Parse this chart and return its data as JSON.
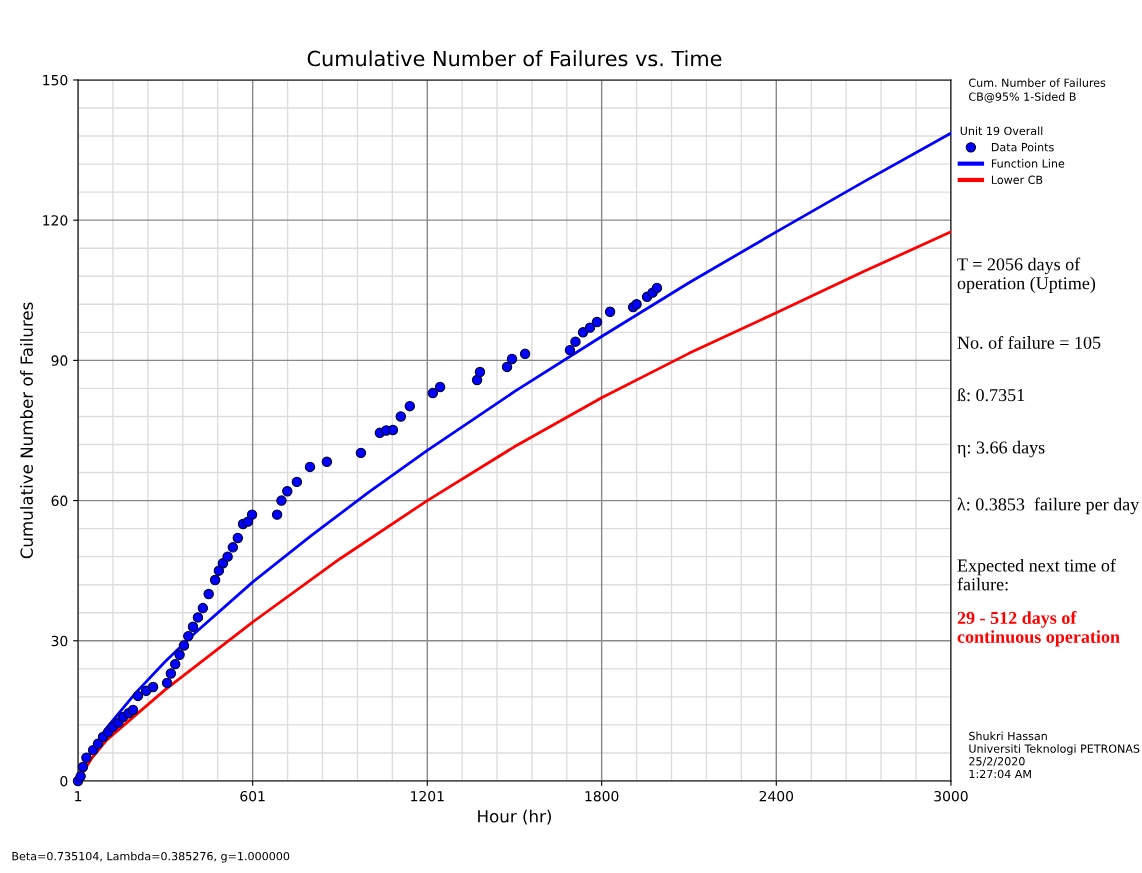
{
  "chart_data": {
    "type": "line",
    "title": "Cumulative Number of Failures vs. Time",
    "xlabel": "Hour (hr)",
    "ylabel": "Cumulative Number of Failures",
    "legend_title": "Unit 19 Overall",
    "legend": "top right",
    "grid": true,
    "xlim": [
      1,
      3000
    ],
    "xticks": [
      1,
      601,
      1201,
      1800,
      2400,
      3000
    ],
    "ylim": [
      0,
      150
    ],
    "yticks": [
      0,
      30,
      60,
      90,
      120,
      150
    ],
    "series": [
      {
        "name": "Data Points",
        "type": "scatter",
        "marker": "circle",
        "color": "#0000ff",
        "x": [
          1,
          10,
          18,
          30,
          53,
          70,
          87,
          105,
          121,
          140,
          156,
          175,
          190,
          207,
          235,
          259,
          307,
          320,
          335,
          350,
          365,
          380,
          396,
          413,
          430,
          450,
          472,
          485,
          499,
          515,
          533,
          550,
          568,
          585,
          599,
          685,
          700,
          720,
          753,
          798,
          856,
          973,
          1038,
          1060,
          1083,
          1110,
          1141,
          1220,
          1245,
          1372,
          1382,
          1475,
          1492,
          1537,
          1691,
          1710,
          1736,
          1760,
          1784,
          1829,
          1908,
          1920,
          1956,
          1975,
          1990
        ],
        "values": [
          0,
          1,
          3,
          5,
          6.6,
          8,
          9.4,
          10.5,
          11.6,
          12.5,
          13.7,
          14.5,
          15.2,
          18.2,
          19.3,
          20.1,
          21,
          23,
          25,
          27,
          29,
          31,
          33,
          35,
          37,
          40,
          43,
          45,
          46.6,
          48,
          50,
          52,
          55,
          55.5,
          57,
          57,
          60,
          62,
          64,
          67.2,
          68.3,
          70.2,
          74.5,
          75,
          75.1,
          78,
          80.2,
          83,
          84.3,
          85.8,
          87.5,
          88.6,
          90.3,
          91.4,
          92.2,
          94,
          96,
          97,
          98.2,
          100.4,
          101.4,
          102,
          103.6,
          104.5,
          105.5
        ]
      },
      {
        "name": "Function Line",
        "color": "#0000ff",
        "x": [
          1,
          50,
          100,
          200,
          300,
          400,
          600,
          800,
          1000,
          1200,
          1500,
          1800,
          2100,
          2400,
          2700,
          3000
        ],
        "values": [
          0.4,
          6.8,
          11.4,
          18.9,
          25.5,
          31.5,
          42.5,
          52.4,
          61.8,
          70.7,
          83.3,
          95.1,
          106.6,
          117.5,
          128.2,
          138.6
        ]
      },
      {
        "name": "Lower CB",
        "color": "#ff0000",
        "x": [
          1,
          50,
          100,
          300,
          601,
          900,
          1201,
          1500,
          1800,
          2100,
          2400,
          2700,
          3000
        ],
        "values": [
          0.2,
          5,
          8.8,
          19.5,
          34,
          47.5,
          60,
          71.5,
          82,
          91.5,
          100.2,
          109,
          117.5
        ]
      }
    ],
    "annotations": [
      "Cum. Number of Failures",
      "CB@95% 1-Sided B",
      "T = 2056 days of operation (Uptime)",
      "No. of failure = 105",
      "ß: 0.7351",
      "η: 3.66 days",
      "λ: 0.3853  failure per day",
      "Expected next time of failure:",
      "29 - 512 days of continuous operation",
      "Shukri Hassan",
      "Universiti Teknologi PETRONAS",
      "25/2/2020",
      "1:27:04 AM",
      "Beta=0.735104, Lambda=0.385276, g=1.000000"
    ]
  }
}
